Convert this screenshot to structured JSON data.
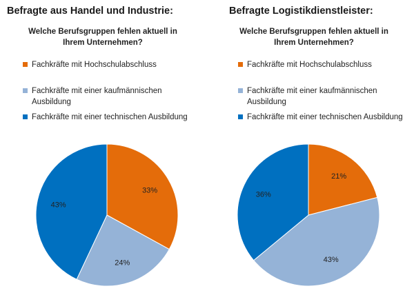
{
  "colors": {
    "hochschul": "#E46C0A",
    "kaufmaennisch": "#95B3D7",
    "technisch": "#0070C0"
  },
  "chart_data": [
    {
      "type": "pie",
      "title": "Befragte aus Handel und Industrie:",
      "subtitle": "Welche Berufsgruppen fehlen aktuell in Ihrem Unternehmen?",
      "legend_position": "top",
      "legend": [
        "Fachkräfte mit Hochschulabschluss",
        "Fachkräfte mit einer kaufmännischen Ausbildung",
        "Fachkräfte mit einer technischen Ausbildung"
      ],
      "slices": [
        {
          "label": "Fachkräfte mit Hochschulabschluss",
          "value": 33,
          "display": "33%",
          "color": "#E46C0A"
        },
        {
          "label": "Fachkräfte mit einer kaufmännischen Ausbildung",
          "value": 24,
          "display": "24%",
          "color": "#95B3D7"
        },
        {
          "label": "Fachkräfte mit einer technischen Ausbildung",
          "value": 43,
          "display": "43%",
          "color": "#0070C0"
        }
      ]
    },
    {
      "type": "pie",
      "title": "Befragte Logistikdienstleister:",
      "subtitle": "Welche Berufsgruppen fehlen aktuell in Ihrem Unternehmen?",
      "legend_position": "top",
      "legend": [
        "Fachkräfte mit Hochschulabschluss",
        "Fachkräfte mit einer kaufmännischen Ausbildung",
        "Fachkräfte mit einer technischen Ausbildung"
      ],
      "slices": [
        {
          "label": "Fachkräfte mit Hochschulabschluss",
          "value": 21,
          "display": "21%",
          "color": "#E46C0A"
        },
        {
          "label": "Fachkräfte mit einer kaufmännischen Ausbildung",
          "value": 43,
          "display": "43%",
          "color": "#95B3D7"
        },
        {
          "label": "Fachkräfte mit einer technischen Ausbildung",
          "value": 36,
          "display": "36%",
          "color": "#0070C0"
        }
      ]
    }
  ]
}
